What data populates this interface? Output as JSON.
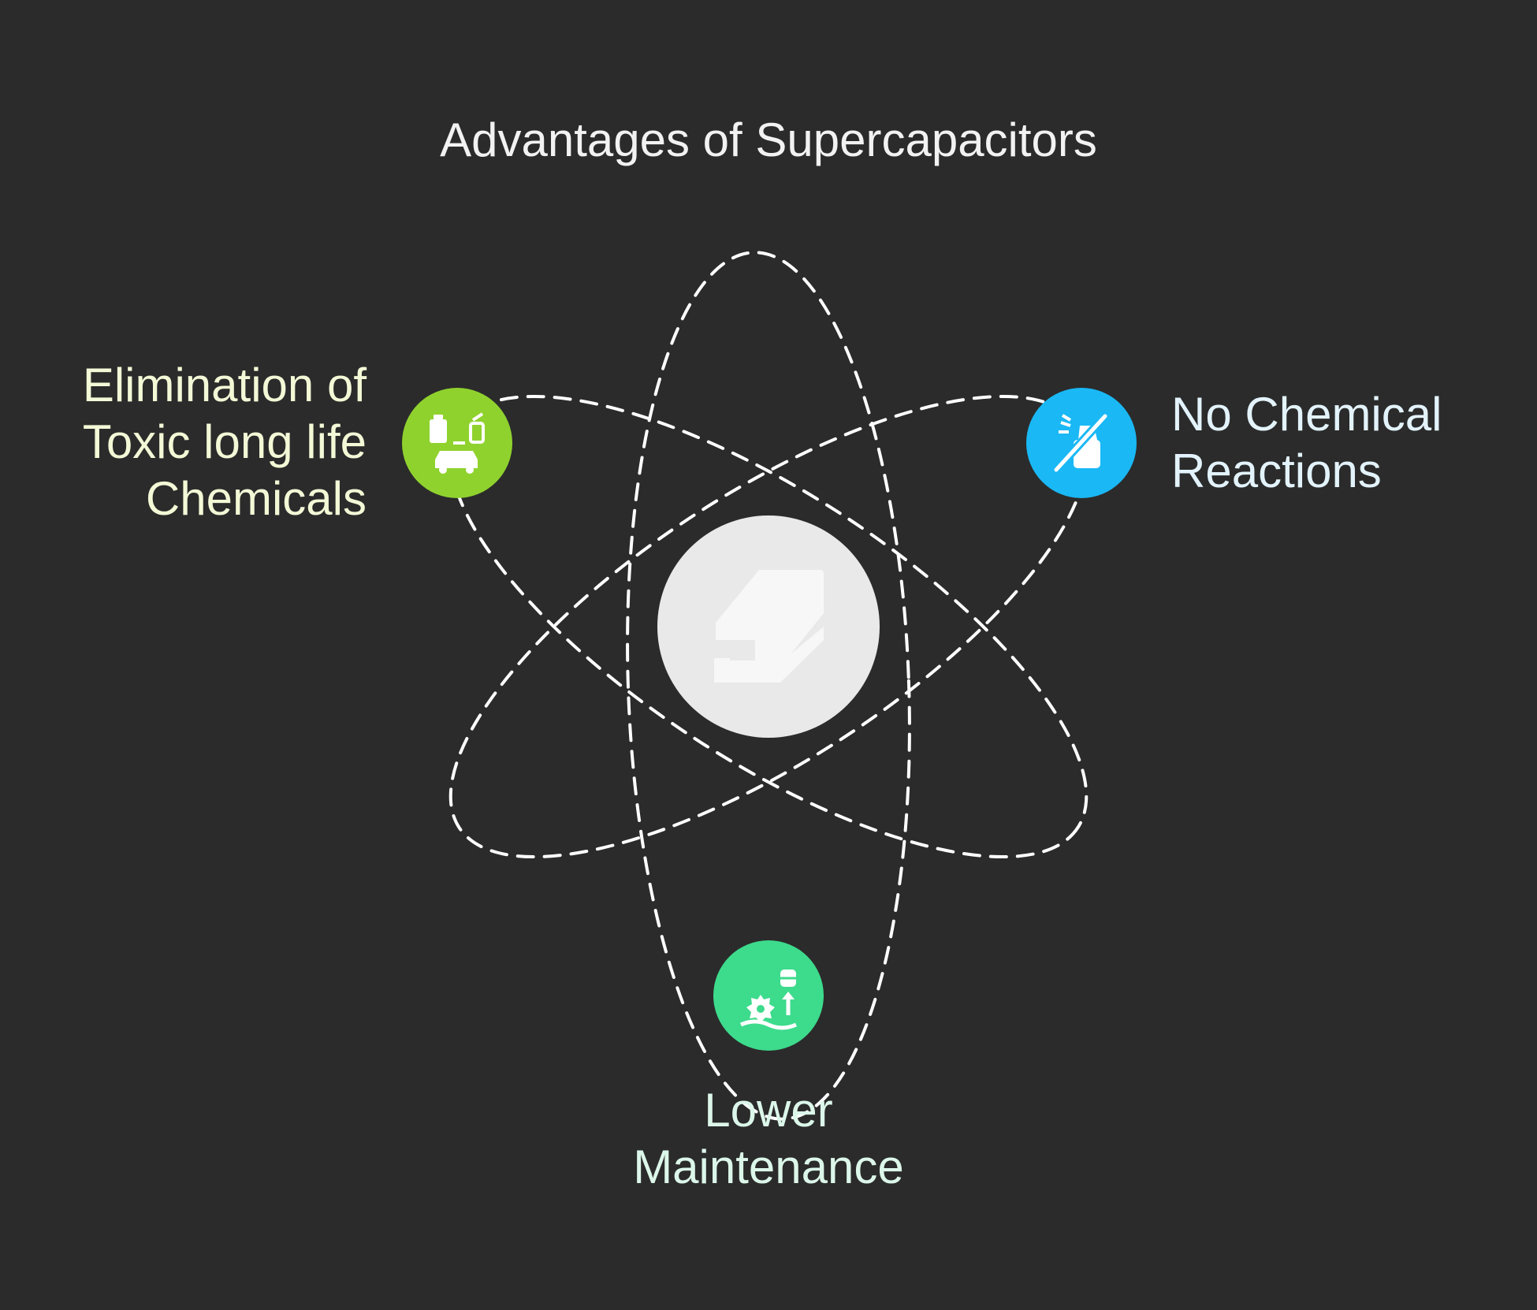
{
  "title": "Advantages of Supercapacitors",
  "colors": {
    "background": "#2b2b2b",
    "orbit": "#ffffff",
    "center_circle": "#e9e9e9",
    "center_icon": "#f7f7f7",
    "green_node": "#8fd22e",
    "blue_node": "#1ab8f5",
    "mint_node": "#3ddb8c"
  },
  "center": {
    "icon": "supercapacitor-icon"
  },
  "nodes": [
    {
      "id": "toxic",
      "icon": "battery-car-recycle-icon",
      "color": "#8fd22e",
      "label_lines": [
        "Elimination of",
        "Toxic long life",
        "Chemicals"
      ]
    },
    {
      "id": "chemical",
      "icon": "no-chemical-spray-icon",
      "color": "#1ab8f5",
      "label_lines": [
        "No Chemical",
        "Reactions"
      ]
    },
    {
      "id": "maintenance",
      "icon": "gear-barrel-maintenance-icon",
      "color": "#3ddb8c",
      "label_lines": [
        "Lower",
        "Maintenance"
      ]
    }
  ]
}
